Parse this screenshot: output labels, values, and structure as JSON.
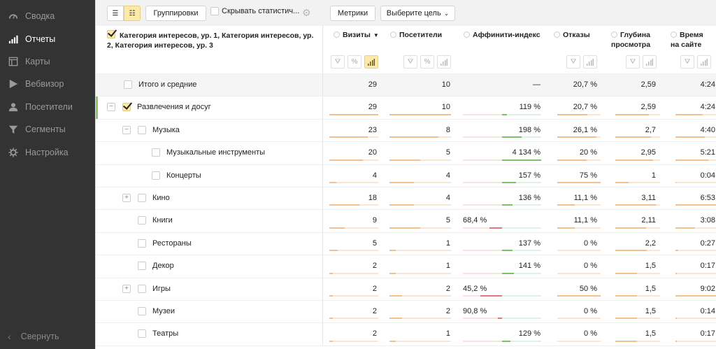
{
  "sidebar": {
    "items": [
      {
        "label": "Сводка",
        "icon": "gauge-icon",
        "active": false
      },
      {
        "label": "Отчеты",
        "icon": "bar-chart-icon",
        "active": true
      },
      {
        "label": "Карты",
        "icon": "layout-icon",
        "active": false
      },
      {
        "label": "Вебвизор",
        "icon": "play-icon",
        "active": false
      },
      {
        "label": "Посетители",
        "icon": "person-icon",
        "active": false
      },
      {
        "label": "Сегменты",
        "icon": "funnel-icon",
        "active": false
      },
      {
        "label": "Настройка",
        "icon": "gear-icon",
        "active": false
      }
    ],
    "collapse_label": "Свернуть"
  },
  "toolbar": {
    "groupings_label": "Группировки",
    "hide_stats_label": "Скрывать статистич...",
    "metrics_label": "Метрики",
    "goal_label": "Выберите цель"
  },
  "table": {
    "dimension_header": "Категория интересов, ур. 1, Категория интересов, ур. 2, Категория интересов, ур. 3",
    "columns": [
      {
        "label": "Визиты",
        "sorted": true
      },
      {
        "label": "Посетители"
      },
      {
        "label": "Аффинити-индекс"
      },
      {
        "label": "Отказы"
      },
      {
        "label": "Глубина просмотра",
        "line1": "Глубина",
        "line2": "просмотра"
      },
      {
        "label": "Время на сайте",
        "line1": "Время",
        "line2": "на сайте"
      }
    ],
    "rows": [
      {
        "name": "Итого и средние",
        "visits": "29",
        "visitors": "10",
        "affinity": "—",
        "bounce": "20,7 %",
        "depth": "2,59",
        "time": "4:24"
      },
      {
        "name": "Развлечения и досуг",
        "visits": "29",
        "visitors": "10",
        "affinity": "119 %",
        "bounce": "20,7 %",
        "depth": "2,59",
        "time": "4:24"
      },
      {
        "name": "Музыка",
        "visits": "23",
        "visitors": "8",
        "affinity": "198 %",
        "bounce": "26,1 %",
        "depth": "2,7",
        "time": "4:40"
      },
      {
        "name": "Музыкальные инструменты",
        "visits": "20",
        "visitors": "5",
        "affinity": "4 134 %",
        "bounce": "20 %",
        "depth": "2,95",
        "time": "5:21"
      },
      {
        "name": "Концерты",
        "visits": "4",
        "visitors": "4",
        "affinity": "157 %",
        "bounce": "75 %",
        "depth": "1",
        "time": "0:04"
      },
      {
        "name": "Кино",
        "visits": "18",
        "visitors": "4",
        "affinity": "136 %",
        "bounce": "11,1 %",
        "depth": "3,11",
        "time": "6:53"
      },
      {
        "name": "Книги",
        "visits": "9",
        "visitors": "5",
        "affinity": "68,4 %",
        "bounce": "11,1 %",
        "depth": "2,11",
        "time": "3:08"
      },
      {
        "name": "Рестораны",
        "visits": "5",
        "visitors": "1",
        "affinity": "137 %",
        "bounce": "0 %",
        "depth": "2,2",
        "time": "0:27"
      },
      {
        "name": "Декор",
        "visits": "2",
        "visitors": "1",
        "affinity": "141 %",
        "bounce": "0 %",
        "depth": "1,5",
        "time": "0:17"
      },
      {
        "name": "Игры",
        "visits": "2",
        "visitors": "2",
        "affinity": "45,2 %",
        "bounce": "50 %",
        "depth": "1,5",
        "time": "9:02"
      },
      {
        "name": "Музеи",
        "visits": "2",
        "visitors": "2",
        "affinity": "90,8 %",
        "bounce": "0 %",
        "depth": "1,5",
        "time": "0:14"
      },
      {
        "name": "Театры",
        "visits": "2",
        "visitors": "1",
        "affinity": "129 %",
        "bounce": "0 %",
        "depth": "1,5",
        "time": "0:17"
      }
    ]
  },
  "colors": {
    "sidebar_bg": "#333333",
    "accent_yellow": "#ffe9a8",
    "bar_orange": "#f4c08f",
    "bar_green": "#7bc26b",
    "bar_red": "#e07a7a",
    "selected_marker": "#8cc85f"
  }
}
